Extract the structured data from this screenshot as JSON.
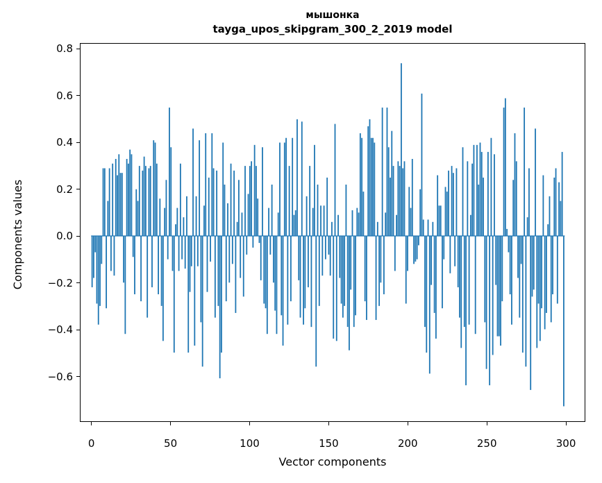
{
  "figure": {
    "title_line1": "мышонка",
    "title_line2": "tayga_upos_skipgram_300_2_2019 model",
    "xlabel": "Vector components",
    "ylabel": "Components values"
  },
  "chart_data": {
    "type": "bar",
    "title": "мышонка — tayga_upos_skipgram_300_2_2019 model",
    "xlabel": "Vector components",
    "ylabel": "Components values",
    "legend": null,
    "grid": false,
    "bar_color": "#1f77b4",
    "axis_color": "#000000",
    "background_color": "#ffffff",
    "n_components": 300,
    "xlim": [
      -8,
      312
    ],
    "ylim": [
      -0.79,
      0.82
    ],
    "x_ticks": [
      {
        "label": "0",
        "value": 0
      },
      {
        "label": "50",
        "value": 50
      },
      {
        "label": "100",
        "value": 100
      },
      {
        "label": "150",
        "value": 150
      },
      {
        "label": "200",
        "value": 200
      },
      {
        "label": "250",
        "value": 250
      },
      {
        "label": "300",
        "value": 300
      }
    ],
    "y_ticks": [
      {
        "label": "0.8",
        "value": 0.8
      },
      {
        "label": "0.6",
        "value": 0.6
      },
      {
        "label": "0.4",
        "value": 0.4
      },
      {
        "label": "0.2",
        "value": 0.2
      },
      {
        "label": "0.0",
        "value": 0.0
      },
      {
        "label": "−0.2",
        "value": -0.2
      },
      {
        "label": "−0.4",
        "value": -0.4
      },
      {
        "label": "−0.6",
        "value": -0.6
      }
    ],
    "values": [
      -0.22,
      -0.18,
      -0.07,
      -0.29,
      -0.38,
      -0.3,
      -0.12,
      0.29,
      0.29,
      -0.31,
      0.15,
      0.29,
      -0.15,
      0.31,
      -0.17,
      0.33,
      0.26,
      0.35,
      0.27,
      0.27,
      -0.2,
      -0.42,
      0.33,
      0.31,
      0.37,
      0.35,
      -0.09,
      -0.25,
      0.2,
      0.15,
      0.3,
      -0.28,
      0.28,
      0.34,
      0.3,
      -0.35,
      0.29,
      0.3,
      -0.22,
      0.41,
      0.4,
      0.31,
      -0.25,
      0.16,
      -0.3,
      -0.45,
      0.12,
      0.24,
      -0.1,
      0.55,
      0.38,
      -0.15,
      -0.5,
      0.05,
      0.12,
      -0.15,
      0.31,
      -0.1,
      0.08,
      -0.14,
      0.17,
      -0.5,
      -0.24,
      -0.13,
      0.46,
      -0.47,
      0.17,
      -0.13,
      0.41,
      -0.37,
      -0.56,
      0.13,
      0.44,
      -0.24,
      0.25,
      -0.11,
      0.44,
      0.29,
      -0.35,
      0.28,
      -0.3,
      -0.61,
      -0.5,
      0.4,
      0.22,
      -0.28,
      0.14,
      -0.2,
      0.31,
      -0.12,
      0.28,
      -0.33,
      0.06,
      0.24,
      -0.18,
      0.1,
      -0.26,
      0.3,
      -0.08,
      0.18,
      0.3,
      0.32,
      -0.05,
      0.39,
      0.3,
      0.16,
      -0.03,
      -0.19,
      0.38,
      -0.29,
      -0.31,
      -0.42,
      0.12,
      -0.08,
      0.22,
      -0.2,
      -0.32,
      -0.42,
      0.1,
      0.4,
      -0.34,
      -0.47,
      0.4,
      0.42,
      -0.38,
      0.3,
      -0.28,
      0.42,
      0.09,
      0.11,
      0.5,
      -0.19,
      -0.35,
      0.49,
      -0.38,
      -0.31,
      0.17,
      -0.22,
      0.3,
      -0.39,
      0.12,
      0.39,
      -0.56,
      0.22,
      -0.3,
      0.13,
      -0.17,
      0.13,
      -0.1,
      0.25,
      -0.08,
      -0.17,
      0.06,
      -0.44,
      0.48,
      -0.45,
      0.09,
      -0.18,
      -0.29,
      -0.35,
      -0.3,
      0.22,
      -0.39,
      -0.49,
      -0.23,
      0.11,
      -0.39,
      -0.34,
      0.12,
      0.1,
      0.44,
      0.42,
      0.19,
      -0.28,
      -0.36,
      0.47,
      0.5,
      0.42,
      0.42,
      0.4,
      -0.36,
      0.06,
      -0.3,
      -0.2,
      0.55,
      -0.25,
      0.1,
      0.55,
      0.38,
      0.25,
      0.45,
      0.3,
      -0.15,
      0.09,
      0.32,
      0.3,
      0.74,
      0.29,
      0.32,
      -0.29,
      -0.15,
      0.21,
      0.12,
      0.33,
      -0.12,
      -0.11,
      -0.1,
      -0.04,
      0.2,
      0.61,
      0.07,
      -0.39,
      -0.5,
      0.07,
      -0.59,
      -0.21,
      0.06,
      -0.33,
      -0.44,
      0.26,
      0.13,
      0.13,
      -0.31,
      -0.1,
      0.21,
      0.19,
      0.28,
      -0.16,
      0.3,
      0.27,
      -0.13,
      0.29,
      -0.22,
      -0.35,
      -0.48,
      0.38,
      -0.39,
      -0.64,
      0.32,
      -0.38,
      0.09,
      0.31,
      0.39,
      -0.42,
      0.39,
      0.22,
      0.4,
      0.36,
      0.25,
      -0.37,
      -0.57,
      0.36,
      -0.64,
      0.42,
      -0.51,
      0.35,
      -0.21,
      -0.43,
      -0.43,
      -0.47,
      -0.28,
      0.55,
      0.59,
      0.03,
      -0.07,
      -0.25,
      -0.38,
      0.24,
      0.44,
      0.32,
      -0.18,
      -0.35,
      -0.12,
      -0.5,
      0.55,
      -0.56,
      0.08,
      0.29,
      -0.66,
      -0.26,
      -0.23,
      0.46,
      -0.48,
      -0.29,
      -0.45,
      -0.31,
      0.26,
      -0.4,
      -0.33,
      0.05,
      0.17,
      -0.37,
      -0.25,
      0.25,
      0.29,
      -0.29,
      0.23,
      0.15,
      0.36,
      -0.73
    ]
  }
}
